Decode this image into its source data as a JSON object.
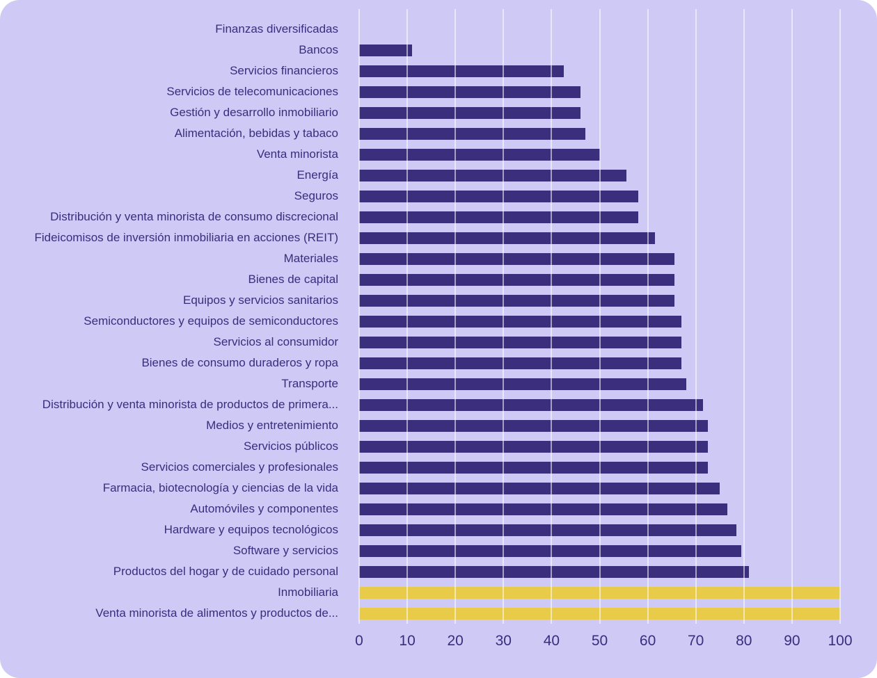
{
  "chart_data": {
    "type": "bar",
    "orientation": "horizontal",
    "title": "",
    "xlabel": "",
    "ylabel": "",
    "xlim": [
      0,
      100
    ],
    "xticks": [
      0,
      10,
      20,
      30,
      40,
      50,
      60,
      70,
      80,
      90,
      100
    ],
    "grid": "vertical-gridlines",
    "legend": "none",
    "categories": [
      "Finanzas diversificadas",
      "Bancos",
      "Servicios financieros",
      "Servicios de telecomunicaciones",
      "Gestión y desarrollo inmobiliario",
      "Alimentación, bebidas y tabaco",
      "Venta minorista",
      "Energía",
      "Seguros",
      "Distribución y venta minorista de consumo discrecional",
      "Fideicomisos de inversión inmobiliaria en acciones (REIT)",
      "Materiales",
      "Bienes de capital",
      "Equipos y servicios sanitarios",
      "Semiconductores y equipos de semiconductores",
      "Servicios al consumidor",
      "Bienes de consumo duraderos y ropa",
      "Transporte",
      "Distribución y venta minorista de productos de primera...",
      "Medios y entretenimiento",
      "Servicios públicos",
      "Servicios comerciales y profesionales",
      "Farmacia, biotecnología y ciencias de la vida",
      "Automóviles y componentes",
      "Hardware y equipos tecnológicos",
      "Software y servicios",
      "Productos del hogar y de cuidado personal",
      "Inmobiliaria",
      "Venta minorista de alimentos y productos de..."
    ],
    "values": [
      0,
      11,
      42.5,
      46,
      46,
      47,
      50,
      55.5,
      58,
      58,
      61.5,
      65.5,
      65.5,
      65.5,
      67,
      67,
      67,
      68,
      71.5,
      72.5,
      72.5,
      72.5,
      75,
      76.5,
      78.5,
      79.5,
      81,
      100,
      100
    ],
    "highlight_indices": [
      27,
      28
    ],
    "colors": {
      "page_background": "#FFFFFF",
      "card_background": "#CFC9F6",
      "bar_default": "#3B2E7D",
      "bar_highlight": "#E8CB49",
      "text": "#3A2D7C",
      "gridline": "#E8E5FB"
    }
  }
}
